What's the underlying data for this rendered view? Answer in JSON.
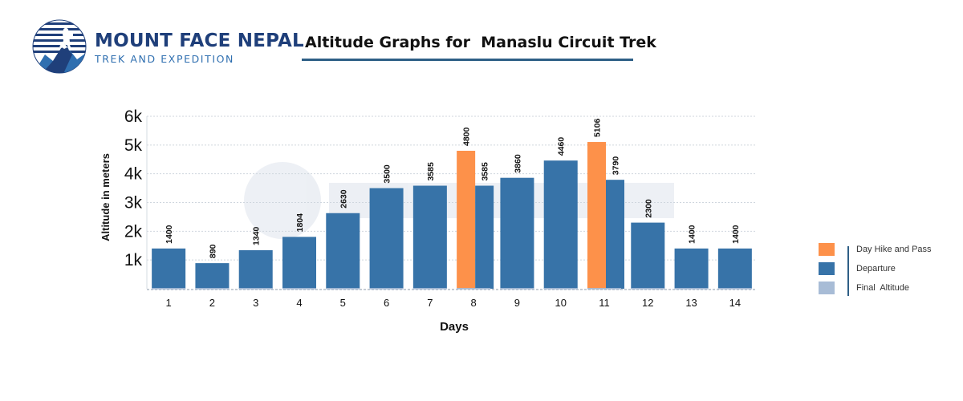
{
  "logo": {
    "name": "MOUNT FACE NEPAL",
    "tagline": "TREK AND EXPEDITION"
  },
  "chart_title": "Altitude Graphs for  Manaslu Circuit Trek",
  "colors": {
    "departure": "#3773a8",
    "day_hike": "#fd914a",
    "final_altitude": "#a8bcd6",
    "title_underline": "#2e5f86",
    "logo_navy": "#1f3f7a",
    "logo_blue": "#2f6fb0"
  },
  "legend": [
    {
      "label": "Day Hike and Pass",
      "color_key": "day_hike"
    },
    {
      "label": "Departure",
      "color_key": "departure"
    },
    {
      "label": "Final  Altitude",
      "color_key": "final_altitude"
    }
  ],
  "chart_data": {
    "type": "bar",
    "xlabel": "Days",
    "ylabel": "Altitude in meters",
    "ylim": [
      0,
      6000
    ],
    "yticks": [
      {
        "value": 1000,
        "label": "1k"
      },
      {
        "value": 2000,
        "label": "2k"
      },
      {
        "value": 3000,
        "label": "3k"
      },
      {
        "value": 4000,
        "label": "4k"
      },
      {
        "value": 5000,
        "label": "5k"
      },
      {
        "value": 6000,
        "label": "6k"
      }
    ],
    "grid": true,
    "legend_position": "right",
    "days": [
      {
        "day": "1",
        "bars": [
          {
            "series": "Departure",
            "value": 1400,
            "label": "1400"
          }
        ]
      },
      {
        "day": "2",
        "bars": [
          {
            "series": "Departure",
            "value": 890,
            "label": "890"
          }
        ]
      },
      {
        "day": "3",
        "bars": [
          {
            "series": "Departure",
            "value": 1340,
            "label": "1340"
          }
        ]
      },
      {
        "day": "4",
        "bars": [
          {
            "series": "Departure",
            "value": 1804,
            "label": "1804"
          }
        ]
      },
      {
        "day": "5",
        "bars": [
          {
            "series": "Departure",
            "value": 2630,
            "label": "2630"
          }
        ]
      },
      {
        "day": "6",
        "bars": [
          {
            "series": "Departure",
            "value": 3500,
            "label": "3500"
          }
        ]
      },
      {
        "day": "7",
        "bars": [
          {
            "series": "Departure",
            "value": 3585,
            "label": "3585"
          }
        ]
      },
      {
        "day": "8",
        "bars": [
          {
            "series": "Day Hike and Pass",
            "value": 4800,
            "label": "4800"
          },
          {
            "series": "Departure",
            "value": 3585,
            "label": "3585"
          }
        ]
      },
      {
        "day": "9",
        "bars": [
          {
            "series": "Departure",
            "value": 3860,
            "label": "3860"
          }
        ]
      },
      {
        "day": "10",
        "bars": [
          {
            "series": "Departure",
            "value": 4460,
            "label": "4460"
          }
        ]
      },
      {
        "day": "11",
        "bars": [
          {
            "series": "Day Hike and Pass",
            "value": 5106,
            "label": "5106"
          },
          {
            "series": "Departure",
            "value": 3790,
            "label": "3790"
          }
        ]
      },
      {
        "day": "12",
        "bars": [
          {
            "series": "Departure",
            "value": 2300,
            "label": "2300"
          }
        ]
      },
      {
        "day": "13",
        "bars": [
          {
            "series": "Departure",
            "value": 1400,
            "label": "1400"
          }
        ]
      },
      {
        "day": "14",
        "bars": [
          {
            "series": "Departure",
            "value": 1400,
            "label": "1400"
          }
        ]
      }
    ]
  }
}
